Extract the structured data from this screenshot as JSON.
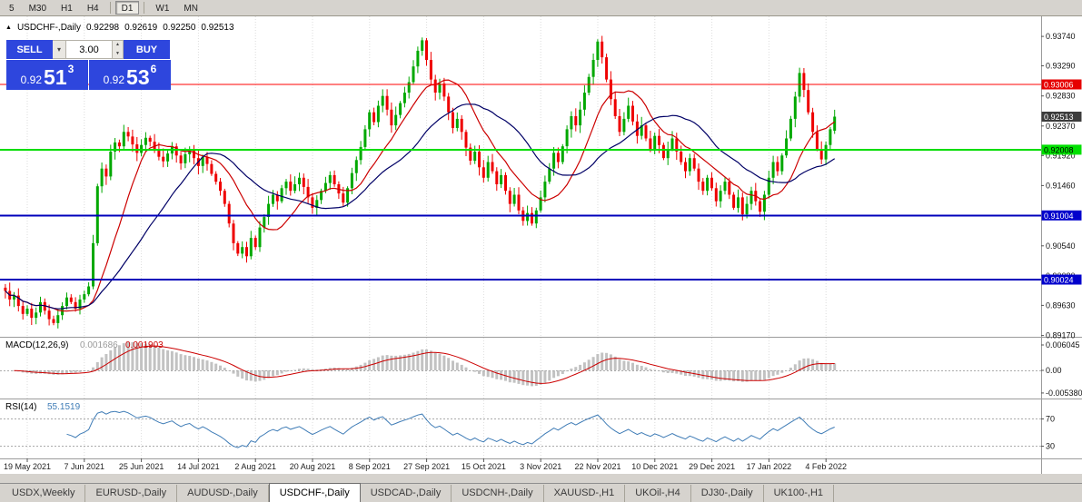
{
  "toolbar": {
    "timeframes": [
      "5",
      "M30",
      "H1",
      "H4",
      "D1",
      "W1",
      "MN"
    ],
    "active": "D1"
  },
  "symbol_header": {
    "arrow": "▲",
    "name": "USDCHF-,Daily",
    "open": "0.92298",
    "high": "0.92619",
    "low": "0.92250",
    "close": "0.92513"
  },
  "trade_panel": {
    "sell_label": "SELL",
    "buy_label": "BUY",
    "volume": "3.00",
    "dropdown_icon": "▾",
    "spin_up": "▲",
    "spin_down": "▼",
    "accent_blue": "#2e46dd",
    "sell_price": {
      "prefix": "0.92",
      "big": "51",
      "sup": "3"
    },
    "buy_price": {
      "prefix": "0.92",
      "big": "53",
      "sup": "6"
    }
  },
  "price_axis": {
    "ticks": [
      "0.93740",
      "0.93290",
      "0.92830",
      "0.92370",
      "0.91920",
      "0.91460",
      "0.90540",
      "0.90080",
      "0.89630",
      "0.89170"
    ],
    "badges": [
      {
        "text": "0.93006",
        "bg": "#e60000",
        "fg": "#ffffff"
      },
      {
        "text": "0.92513",
        "bg": "#3c3c3c",
        "fg": "#ffffff"
      },
      {
        "text": "0.92008",
        "bg": "#00e000",
        "fg": "#000000"
      },
      {
        "text": "0.91004",
        "bg": "#0000cc",
        "fg": "#ffffff"
      },
      {
        "text": "0.90024",
        "bg": "#0000cc",
        "fg": "#ffffff"
      }
    ]
  },
  "chart_data": {
    "type": "candlestick",
    "title": "USDCHF-,Daily",
    "ylim": [
      0.8917,
      0.9405
    ],
    "x_dates": [
      "19 May 2021",
      "7 Jun 2021",
      "25 Jun 2021",
      "14 Jul 2021",
      "2 Aug 2021",
      "20 Aug 2021",
      "8 Sep 2021",
      "27 Sep 2021",
      "15 Oct 2021",
      "3 Nov 2021",
      "22 Nov 2021",
      "10 Dec 2021",
      "29 Dec 2021",
      "17 Jan 2022",
      "4 Feb 2022"
    ],
    "candle_colors": {
      "up": "#00a800",
      "down": "#ee0000"
    },
    "closes": [
      0.8985,
      0.8972,
      0.8978,
      0.8962,
      0.895,
      0.8958,
      0.8944,
      0.8952,
      0.8968,
      0.8955,
      0.8942,
      0.8936,
      0.8948,
      0.8962,
      0.8975,
      0.8968,
      0.8958,
      0.8972,
      0.898,
      0.8992,
      0.9058,
      0.9145,
      0.9172,
      0.916,
      0.9198,
      0.9212,
      0.9206,
      0.9228,
      0.9221,
      0.9209,
      0.9196,
      0.9208,
      0.9219,
      0.9213,
      0.9201,
      0.919,
      0.9183,
      0.9195,
      0.9206,
      0.9192,
      0.918,
      0.9194,
      0.9202,
      0.9188,
      0.9176,
      0.919,
      0.9179,
      0.9164,
      0.9152,
      0.9138,
      0.9118,
      0.9088,
      0.9058,
      0.9042,
      0.9052,
      0.9038,
      0.9066,
      0.9052,
      0.9082,
      0.9098,
      0.9118,
      0.9132,
      0.9122,
      0.9142,
      0.9152,
      0.9138,
      0.9148,
      0.9158,
      0.9144,
      0.9128,
      0.9112,
      0.9124,
      0.9138,
      0.915,
      0.9162,
      0.9148,
      0.9134,
      0.912,
      0.9142,
      0.9165,
      0.9185,
      0.9205,
      0.9232,
      0.9258,
      0.9243,
      0.9268,
      0.9283,
      0.9262,
      0.9238,
      0.9254,
      0.9272,
      0.9288,
      0.9304,
      0.9328,
      0.9352,
      0.9368,
      0.9338,
      0.9308,
      0.9288,
      0.9302,
      0.9282,
      0.9258,
      0.9234,
      0.9248,
      0.9228,
      0.9204,
      0.9184,
      0.9198,
      0.9174,
      0.9158,
      0.9182,
      0.9168,
      0.9148,
      0.9162,
      0.9138,
      0.9118,
      0.9132,
      0.9108,
      0.9092,
      0.9104,
      0.9088,
      0.9108,
      0.9128,
      0.9152,
      0.9172,
      0.9196,
      0.9182,
      0.9206,
      0.9232,
      0.9252,
      0.9238,
      0.9262,
      0.9288,
      0.9312,
      0.9338,
      0.9366,
      0.9342,
      0.9308,
      0.9278,
      0.9252,
      0.9228,
      0.9248,
      0.9268,
      0.9244,
      0.9222,
      0.9238,
      0.9218,
      0.9202,
      0.9222,
      0.9208,
      0.9188,
      0.9202,
      0.9218,
      0.9198,
      0.9182,
      0.9168,
      0.9188,
      0.9172,
      0.9152,
      0.9138,
      0.9158,
      0.9142,
      0.9122,
      0.9138,
      0.9152,
      0.9132,
      0.9112,
      0.9128,
      0.9102,
      0.9118,
      0.9138,
      0.9122,
      0.9106,
      0.9132,
      0.9158,
      0.9182,
      0.9168,
      0.9192,
      0.9218,
      0.9248,
      0.9282,
      0.9318,
      0.9292,
      0.9258,
      0.9228,
      0.9202,
      0.9186,
      0.9208,
      0.9232,
      0.92513
    ],
    "last_candle": {
      "open": 0.92298,
      "high": 0.92619,
      "low": 0.9225,
      "close": 0.92513
    },
    "levels": [
      {
        "price": 0.93006,
        "color": "#ff0000",
        "width": 1
      },
      {
        "price": 0.92008,
        "color": "#00dd00",
        "width": 2
      },
      {
        "price": 0.91004,
        "color": "#0000bb",
        "width": 2
      },
      {
        "price": 0.90024,
        "color": "#0000bb",
        "width": 2
      }
    ],
    "overlays": [
      {
        "name": "ma-fast",
        "color": "#cc0000",
        "period": 12
      },
      {
        "name": "ma-slow",
        "color": "#000066",
        "period": 26
      }
    ],
    "indicators": [
      {
        "type": "macd",
        "label": "MACD(12,26,9)",
        "values_text": [
          "0.001686",
          "0.001903"
        ],
        "axis_ticks": [
          "0.006045",
          "0.00",
          "-0.005380"
        ],
        "axis_values": [
          0.006045,
          0,
          -0.00538
        ],
        "histogram_color": "#c2c2c2",
        "signal_color": "#cc0000"
      },
      {
        "type": "rsi",
        "label": "RSI(14)",
        "value_text": "55.1519",
        "levels": [
          70,
          30
        ],
        "color": "#3f7cb6"
      }
    ]
  },
  "tabs": {
    "items": [
      "USDX,Weekly",
      "EURUSD-,Daily",
      "AUDUSD-,Daily",
      "USDCHF-,Daily",
      "USDCAD-,Daily",
      "USDCNH-,Daily",
      "XAUUSD-,H1",
      "UKOil-,H4",
      "DJ30-,Daily",
      "UK100-,H1"
    ],
    "active": "USDCHF-,Daily"
  }
}
